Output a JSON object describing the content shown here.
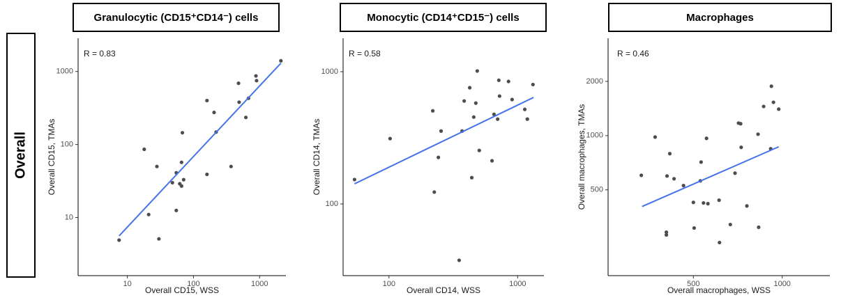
{
  "row_label": "Overall",
  "chart_data": [
    {
      "type": "scatter",
      "title": "Granulocytic (CD15⁺CD14⁻) cells",
      "annotation": "R = 0.83",
      "xlabel": "Overall CD15, WSS",
      "ylabel": "Overall CD15, TMAs",
      "xscale": "log",
      "yscale": "log",
      "color": "#4d4d4d",
      "xlim": [
        1.8,
        2500
      ],
      "ylim": [
        1.6,
        2850
      ],
      "xticks": [
        10,
        100,
        1000
      ],
      "yticks": [
        10,
        100,
        1000
      ],
      "x": [
        7.5,
        18,
        21,
        28,
        30,
        48,
        55,
        55,
        62,
        66,
        68,
        71,
        66,
        160,
        160,
        205,
        220,
        370,
        480,
        490,
        620,
        680,
        880,
        900,
        2100
      ],
      "values": [
        4.9,
        86,
        11,
        50,
        5.1,
        30,
        41,
        12.5,
        29,
        57,
        145,
        33,
        27,
        400,
        39,
        275,
        148,
        50,
        690,
        380,
        235,
        430,
        870,
        750,
        1400
      ],
      "fit_line": {
        "color": "#4472e8",
        "x": [
          7.5,
          2100
        ],
        "values": [
          5.6,
          1300
        ]
      }
    },
    {
      "type": "scatter",
      "title": "Monocytic (CD14⁺CD15⁻) cells",
      "annotation": "R = 0.58",
      "xlabel": "Overall CD14, WSS",
      "ylabel": "Overall CD14, TMAs",
      "xscale": "log",
      "yscale": "log",
      "color": "#4d4d4d",
      "xlim": [
        44,
        1600
      ],
      "ylim": [
        28.7,
        1790
      ],
      "xticks": [
        100,
        1000
      ],
      "yticks": [
        100,
        1000
      ],
      "x": [
        54,
        102,
        219,
        225,
        242,
        254,
        351,
        370,
        384,
        424,
        440,
        456,
        473,
        485,
        503,
        632,
        655,
        699,
        714,
        723,
        849,
        905,
        1136,
        1189,
        1315
      ],
      "values": [
        153,
        312,
        506,
        123,
        225,
        356,
        37.5,
        356,
        601,
        757,
        158,
        454,
        579,
        1013,
        254,
        212,
        476,
        438,
        862,
        654,
        844,
        616,
        519,
        438,
        800
      ],
      "fit_line": {
        "color": "#4472e8",
        "x": [
          54,
          1330
        ],
        "values": [
          142,
          639
        ]
      }
    },
    {
      "type": "scatter",
      "title": "Macrophages",
      "annotation": "R = 0.46",
      "xlabel": "Overall macrophages, WSS",
      "ylabel": "Overall macrophages, TMAs",
      "xscale": "log",
      "yscale": "log",
      "color": "#4d4d4d",
      "xlim": [
        257,
        1450
      ],
      "ylim": [
        167,
        3470
      ],
      "xticks": [
        500,
        1000
      ],
      "yticks": [
        500,
        1000,
        2000
      ],
      "x": [
        333,
        371,
        416,
        407,
        430,
        463,
        500,
        531,
        541,
        560,
        528,
        405,
        405,
        503,
        554,
        611,
        613,
        667,
        692,
        711,
        723,
        726,
        832,
        828,
        865,
        919,
        934,
        973,
        914,
        759
      ],
      "values": [
        602,
        982,
        794,
        597,
        576,
        528,
        426,
        713,
        423,
        419,
        561,
        291,
        281,
        307,
        966,
        438,
        255,
        321,
        619,
        1174,
        1164,
        861,
        310,
        1018,
        1452,
        1880,
        1531,
        1403,
        845,
        407
      ],
      "fit_line": {
        "color": "#4472e8",
        "x": [
          335,
          973
        ],
        "values": [
          404,
          867
        ]
      }
    }
  ]
}
